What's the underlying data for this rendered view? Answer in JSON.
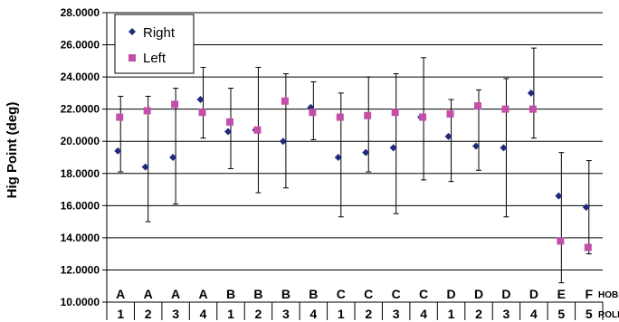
{
  "chart_data": {
    "type": "scatter",
    "title": "",
    "ylabel": "Hig Point (deg)",
    "ylim": [
      10,
      28
    ],
    "ytick_step": 2,
    "grid": true,
    "legend_placement": "top-left",
    "categories": [
      {
        "hobb": "A",
        "roll": "1"
      },
      {
        "hobb": "A",
        "roll": "2"
      },
      {
        "hobb": "A",
        "roll": "3"
      },
      {
        "hobb": "A",
        "roll": "4"
      },
      {
        "hobb": "B",
        "roll": "1"
      },
      {
        "hobb": "B",
        "roll": "2"
      },
      {
        "hobb": "B",
        "roll": "3"
      },
      {
        "hobb": "B",
        "roll": "4"
      },
      {
        "hobb": "C",
        "roll": "1"
      },
      {
        "hobb": "C",
        "roll": "2"
      },
      {
        "hobb": "C",
        "roll": "3"
      },
      {
        "hobb": "C",
        "roll": "4"
      },
      {
        "hobb": "D",
        "roll": "1"
      },
      {
        "hobb": "D",
        "roll": "2"
      },
      {
        "hobb": "D",
        "roll": "3"
      },
      {
        "hobb": "D",
        "roll": "4"
      },
      {
        "hobb": "E",
        "roll": "5"
      },
      {
        "hobb": "F",
        "roll": "5"
      }
    ],
    "row_labels": {
      "hobb": "HOBB",
      "roll": "ROLL"
    },
    "series": [
      {
        "name": "Right",
        "marker": "diamond",
        "color": "#1f2a7a",
        "values": [
          19.4,
          18.4,
          19.0,
          22.6,
          20.6,
          20.7,
          20.0,
          22.1,
          19.0,
          19.3,
          19.6,
          21.5,
          20.3,
          19.7,
          19.6,
          23.0,
          16.6,
          15.9
        ],
        "err_high": [
          22.8,
          22.8,
          23.3,
          24.6,
          23.3,
          24.6,
          24.2,
          23.7,
          23.0,
          24.0,
          24.2,
          25.2,
          22.6,
          23.2,
          23.9,
          25.8,
          19.3,
          18.8
        ],
        "err_low": [
          18.1,
          15.0,
          16.1,
          20.2,
          18.3,
          16.8,
          17.1,
          20.1,
          15.3,
          18.1,
          15.5,
          17.6,
          17.5,
          18.2,
          15.3,
          20.2,
          11.2,
          13.0
        ]
      },
      {
        "name": "Left",
        "marker": "square",
        "color": "#c44fa8",
        "values": [
          21.5,
          21.9,
          22.3,
          21.8,
          21.2,
          20.7,
          22.5,
          21.8,
          21.5,
          21.6,
          21.8,
          21.5,
          21.7,
          22.2,
          22.0,
          22.0,
          13.8,
          13.4
        ]
      }
    ]
  }
}
